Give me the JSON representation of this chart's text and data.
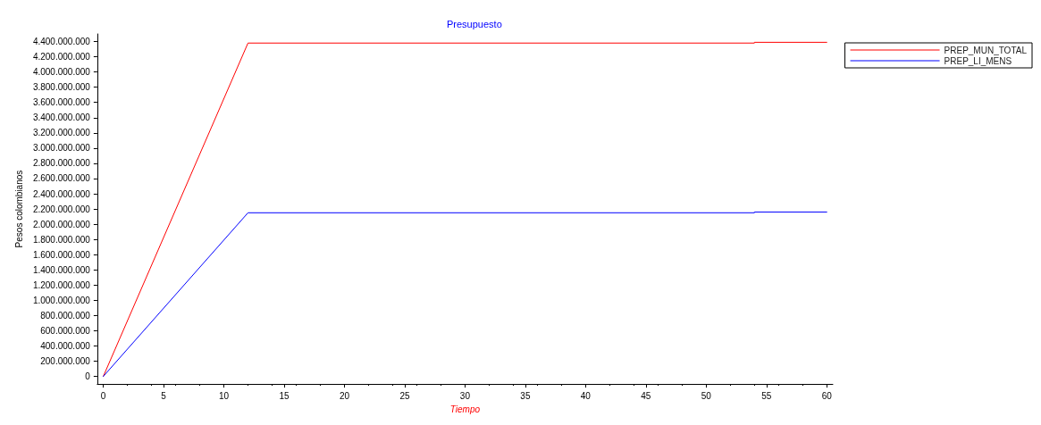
{
  "chart_data": {
    "type": "line",
    "title": "Presupuesto",
    "xlabel": "Tiempo",
    "ylabel": "Pesos colombianos",
    "xlim": [
      -0.5,
      60.5
    ],
    "xticks": [
      0,
      5,
      10,
      15,
      20,
      25,
      30,
      35,
      40,
      45,
      50,
      55,
      60
    ],
    "ylim": [
      -100000000,
      4500000000
    ],
    "yticks": [
      {
        "value": 0,
        "label": "0"
      },
      {
        "value": 200000000,
        "label": "200.000.000"
      },
      {
        "value": 400000000,
        "label": "400.000.000"
      },
      {
        "value": 600000000,
        "label": "600.000.000"
      },
      {
        "value": 800000000,
        "label": "800.000.000"
      },
      {
        "value": 1000000000,
        "label": "1.000.000.000"
      },
      {
        "value": 1200000000,
        "label": "1.200.000.000"
      },
      {
        "value": 1400000000,
        "label": "1.400.000.000"
      },
      {
        "value": 1600000000,
        "label": "1.600.000.000"
      },
      {
        "value": 1800000000,
        "label": "1.800.000.000"
      },
      {
        "value": 2000000000,
        "label": "2.000.000.000"
      },
      {
        "value": 2200000000,
        "label": "2.200.000.000"
      },
      {
        "value": 2400000000,
        "label": "2.400.000.000"
      },
      {
        "value": 2600000000,
        "label": "2.600.000.000"
      },
      {
        "value": 2800000000,
        "label": "2.800.000.000"
      },
      {
        "value": 3000000000,
        "label": "3.000.000.000"
      },
      {
        "value": 3200000000,
        "label": "3.200.000.000"
      },
      {
        "value": 3400000000,
        "label": "3.400.000.000"
      },
      {
        "value": 3600000000,
        "label": "3.600.000.000"
      },
      {
        "value": 3800000000,
        "label": "3.800.000.000"
      },
      {
        "value": 4000000000,
        "label": "4.000.000.000"
      },
      {
        "value": 4200000000,
        "label": "4.200.000.000"
      },
      {
        "value": 4400000000,
        "label": "4.400.000.000"
      }
    ],
    "legend": "top right",
    "grid": false,
    "marker": "none",
    "line_style": "solid",
    "series": [
      {
        "name": "PREP_MUN_TOTAL",
        "color": "#ff0000",
        "x": [
          0,
          12,
          54,
          54,
          60
        ],
        "values": [
          0,
          4380000000,
          4380000000,
          4390000000,
          4390000000
        ]
      },
      {
        "name": "PREP_LI_MENS",
        "color": "#0000ff",
        "x": [
          0,
          12,
          54,
          54,
          60
        ],
        "values": [
          0,
          2150000000,
          2150000000,
          2160000000,
          2160000000
        ]
      }
    ]
  }
}
